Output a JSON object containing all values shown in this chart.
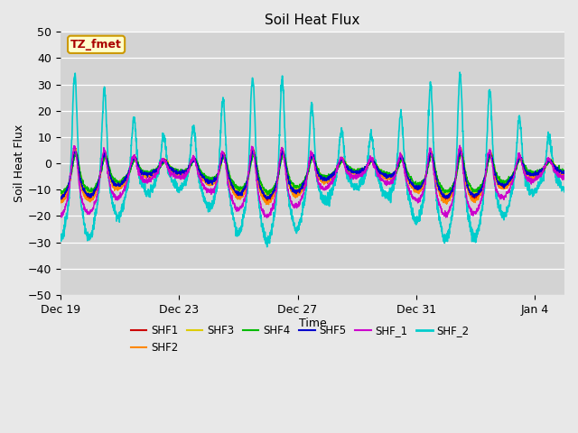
{
  "title": "Soil Heat Flux",
  "xlabel": "Time",
  "ylabel": "Soil Heat Flux",
  "ylim": [
    -50,
    50
  ],
  "yticks": [
    -50,
    -40,
    -30,
    -20,
    -10,
    0,
    10,
    20,
    30,
    40,
    50
  ],
  "background_color": "#e8e8e8",
  "plot_bg_color": "#d3d3d3",
  "series": {
    "SHF1": {
      "color": "#cc0000",
      "lw": 1.0
    },
    "SHF2": {
      "color": "#ff8800",
      "lw": 1.0
    },
    "SHF3": {
      "color": "#ddcc00",
      "lw": 1.0
    },
    "SHF4": {
      "color": "#00bb00",
      "lw": 1.0
    },
    "SHF5": {
      "color": "#0000cc",
      "lw": 1.0
    },
    "SHF_1": {
      "color": "#cc00cc",
      "lw": 1.0
    },
    "SHF_2": {
      "color": "#00cccc",
      "lw": 1.2
    }
  },
  "xtick_labels": [
    "Dec 19",
    "Dec 23",
    "Dec 27",
    "Dec 31",
    "Jan 4"
  ],
  "xtick_positions": [
    0,
    4,
    8,
    12,
    16
  ],
  "annotation_text": "TZ_fmet",
  "annotation_color": "#aa0000",
  "annotation_bg": "#ffffcc",
  "annotation_border": "#cc9900",
  "n_days": 17,
  "ppd": 144
}
